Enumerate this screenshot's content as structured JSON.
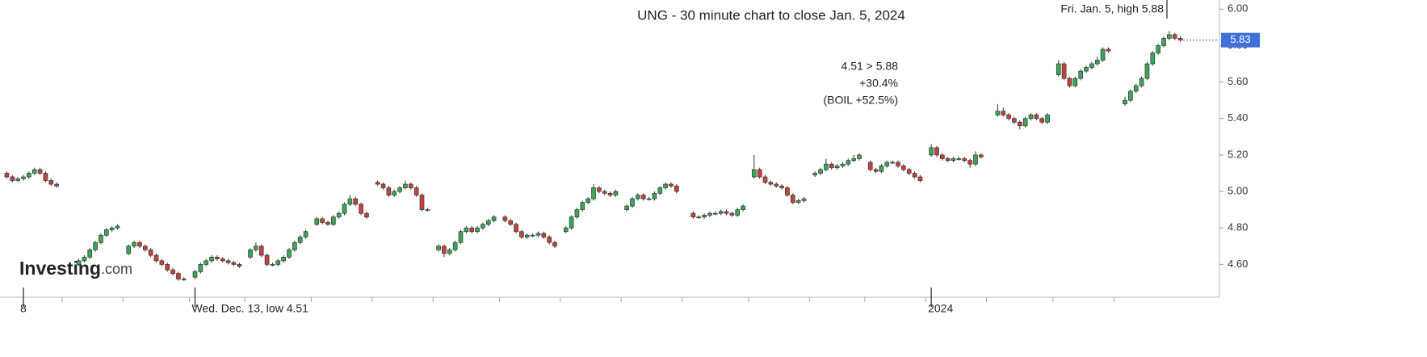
{
  "chart_data": {
    "type": "candlestick",
    "title": "UNG - 30 minute chart to close Jan. 5, 2024",
    "annotations": [
      "Fri. Jan. 5, high 5.88",
      "4.51 > 5.88",
      "+30.4%",
      "(BOIL +52.5%)"
    ],
    "watermark": [
      "Investing",
      ".com"
    ],
    "last_price": 5.83,
    "last_price_color": "#3f6fd8",
    "up_color": "#3aa757",
    "down_color": "#c9403a",
    "ylim": [
      4.42,
      6.05
    ],
    "yticks": [
      {
        "value": 4.6,
        "label": "4.60"
      },
      {
        "value": 4.8,
        "label": "4.80"
      },
      {
        "value": 5.0,
        "label": "5.00"
      },
      {
        "value": 5.2,
        "label": "5.20"
      },
      {
        "value": 5.4,
        "label": "5.40"
      },
      {
        "value": 5.6,
        "label": "5.60"
      },
      {
        "value": 5.8,
        "label": "5.80"
      },
      {
        "value": 6.0,
        "label": "6.00"
      }
    ],
    "categories": [
      null,
      null,
      null,
      "8",
      null,
      null,
      null,
      null,
      null,
      null,
      null,
      null,
      null,
      null,
      null,
      null,
      null,
      null,
      null,
      null,
      null,
      null,
      null,
      null,
      null,
      null,
      null,
      null,
      null,
      null,
      null,
      null,
      null,
      null,
      "Wed. Dec. 13, low 4.51",
      null,
      null,
      null,
      null,
      null,
      null,
      null,
      null,
      null,
      null,
      null,
      null,
      null,
      null,
      null,
      null,
      null,
      null,
      null,
      null,
      null,
      null,
      null,
      null,
      null,
      null,
      null,
      null,
      null,
      null,
      null,
      null,
      null,
      null,
      null,
      null,
      null,
      null,
      null,
      null,
      null,
      null,
      null,
      null,
      null,
      null,
      null,
      null,
      null,
      null,
      null,
      null,
      null,
      null,
      null,
      null,
      null,
      null,
      null,
      null,
      null,
      null,
      null,
      null,
      null,
      null,
      null,
      null,
      null,
      null,
      null,
      null,
      null,
      null,
      null,
      null,
      null,
      null,
      null,
      null,
      null,
      null,
      null,
      null,
      null,
      null,
      null,
      null,
      null,
      null,
      null,
      null,
      null,
      null,
      null,
      null,
      null,
      null,
      null,
      null,
      null,
      null,
      null,
      null,
      null,
      null,
      null,
      null,
      null,
      null,
      null,
      null,
      null,
      null,
      null,
      null,
      null,
      null,
      null,
      null,
      null,
      null,
      null,
      null,
      null,
      null,
      null,
      null,
      null,
      null,
      null,
      null,
      "2024",
      null,
      null,
      null,
      null,
      null,
      null,
      null,
      null,
      null,
      null,
      null,
      null,
      null,
      null,
      null,
      null,
      null,
      null,
      null,
      null,
      null,
      null,
      null,
      null,
      null,
      null,
      null,
      null,
      null,
      null,
      null,
      null,
      null,
      null,
      null,
      null,
      null,
      null,
      null,
      null,
      null,
      null,
      null,
      null,
      null
    ],
    "open": [
      5.1,
      5.08,
      5.06,
      5.07,
      5.08,
      5.1,
      5.12,
      5.1,
      5.06,
      5.04,
      null,
      null,
      null,
      4.6,
      4.62,
      4.64,
      4.68,
      4.72,
      4.76,
      4.79,
      4.8,
      null,
      4.66,
      4.7,
      4.72,
      4.7,
      4.68,
      4.65,
      4.62,
      4.6,
      4.57,
      4.55,
      4.52,
      null,
      4.53,
      4.56,
      4.6,
      4.62,
      4.64,
      4.63,
      4.62,
      4.61,
      4.6,
      null,
      4.64,
      4.68,
      4.7,
      4.65,
      4.6,
      4.6,
      4.62,
      4.64,
      4.68,
      4.72,
      4.75,
      null,
      4.82,
      4.85,
      4.83,
      4.82,
      4.86,
      4.88,
      4.93,
      4.96,
      4.93,
      4.88,
      null,
      5.05,
      5.04,
      5.02,
      4.98,
      5.0,
      5.02,
      5.04,
      5.02,
      4.98,
      4.9,
      null,
      4.68,
      4.7,
      4.66,
      4.68,
      4.72,
      4.78,
      4.8,
      4.78,
      4.8,
      4.82,
      4.84,
      null,
      4.86,
      4.84,
      4.82,
      4.78,
      4.75,
      4.76,
      4.76,
      4.77,
      4.75,
      4.72,
      null,
      4.78,
      4.8,
      4.86,
      4.9,
      4.94,
      4.96,
      5.02,
      5.0,
      4.99,
      4.98,
      null,
      4.9,
      4.92,
      4.96,
      4.98,
      4.96,
      4.96,
      4.99,
      5.02,
      5.04,
      5.03,
      null,
      null,
      4.88,
      4.86,
      4.86,
      4.87,
      4.88,
      4.88,
      4.89,
      4.88,
      4.87,
      4.9,
      null,
      5.08,
      5.12,
      5.08,
      5.05,
      5.04,
      5.03,
      5.02,
      4.98,
      4.94,
      4.95,
      null,
      5.09,
      5.1,
      5.12,
      5.15,
      5.13,
      5.14,
      5.15,
      5.17,
      5.18,
      null,
      5.16,
      5.12,
      5.11,
      5.14,
      5.16,
      5.16,
      5.14,
      5.12,
      5.1,
      5.08,
      null,
      5.2,
      5.24,
      5.2,
      5.18,
      5.17,
      5.18,
      5.18,
      5.17,
      5.15,
      5.2,
      null,
      null,
      5.42,
      5.44,
      5.42,
      5.4,
      5.38,
      5.36,
      5.4,
      5.42,
      5.4,
      5.38,
      null,
      5.64,
      5.7,
      5.62,
      5.58,
      5.62,
      5.66,
      5.68,
      5.7,
      5.72,
      5.78,
      null,
      null,
      5.48,
      5.5,
      5.55,
      5.58,
      5.62,
      5.7,
      5.76,
      5.8,
      5.84,
      5.86,
      5.84
    ],
    "high": [
      5.11,
      5.09,
      5.08,
      5.09,
      5.11,
      5.13,
      5.13,
      5.11,
      5.07,
      5.05,
      null,
      null,
      null,
      4.63,
      4.65,
      4.69,
      4.73,
      4.77,
      4.8,
      4.81,
      4.82,
      null,
      4.71,
      4.73,
      4.73,
      4.71,
      4.69,
      4.66,
      4.63,
      4.61,
      4.58,
      4.56,
      4.53,
      null,
      4.57,
      4.61,
      4.63,
      4.65,
      4.65,
      4.64,
      4.63,
      4.62,
      4.61,
      null,
      4.69,
      4.72,
      4.71,
      4.66,
      4.61,
      4.63,
      4.65,
      4.69,
      4.73,
      4.76,
      4.79,
      null,
      4.86,
      4.86,
      4.84,
      4.87,
      4.89,
      4.94,
      4.98,
      4.97,
      4.94,
      4.89,
      null,
      5.06,
      5.05,
      5.03,
      5.01,
      5.03,
      5.06,
      5.05,
      5.03,
      4.99,
      4.91,
      null,
      4.71,
      4.71,
      4.69,
      4.73,
      4.79,
      4.81,
      4.81,
      4.81,
      4.83,
      4.85,
      4.87,
      null,
      4.87,
      4.85,
      4.83,
      4.79,
      4.77,
      4.77,
      4.78,
      4.78,
      4.76,
      4.73,
      null,
      4.81,
      4.87,
      4.91,
      4.95,
      4.97,
      5.04,
      5.03,
      5.01,
      5.0,
      5.01,
      null,
      4.93,
      4.97,
      4.99,
      4.99,
      4.97,
      5.0,
      5.03,
      5.05,
      5.05,
      5.04,
      null,
      null,
      4.89,
      4.87,
      4.88,
      4.89,
      4.89,
      4.9,
      4.9,
      4.89,
      4.91,
      4.93,
      null,
      5.2,
      5.13,
      5.09,
      5.06,
      5.05,
      5.04,
      5.03,
      4.99,
      4.96,
      4.97,
      null,
      5.11,
      5.13,
      5.18,
      5.16,
      5.15,
      5.16,
      5.18,
      5.2,
      5.21,
      null,
      5.17,
      5.13,
      5.15,
      5.17,
      5.17,
      5.17,
      5.15,
      5.13,
      5.11,
      5.09,
      null,
      5.26,
      5.25,
      5.21,
      5.19,
      5.19,
      5.19,
      5.19,
      5.18,
      5.22,
      5.21,
      null,
      null,
      5.48,
      5.46,
      5.43,
      5.41,
      5.39,
      5.41,
      5.43,
      5.43,
      5.41,
      5.43,
      null,
      5.72,
      5.71,
      5.63,
      5.63,
      5.67,
      5.69,
      5.71,
      5.74,
      5.79,
      5.79,
      null,
      null,
      5.52,
      5.56,
      5.59,
      5.63,
      5.71,
      5.77,
      5.81,
      5.85,
      5.88,
      5.87,
      5.85
    ],
    "low": [
      5.07,
      5.05,
      5.05,
      5.06,
      5.07,
      5.09,
      5.09,
      5.05,
      5.03,
      5.02,
      null,
      null,
      null,
      4.59,
      4.61,
      4.63,
      4.67,
      4.71,
      4.75,
      4.78,
      4.79,
      null,
      4.65,
      4.69,
      4.69,
      4.67,
      4.64,
      4.61,
      4.59,
      4.56,
      4.54,
      4.51,
      4.51,
      null,
      4.52,
      4.55,
      4.59,
      4.61,
      4.62,
      4.61,
      4.6,
      4.59,
      4.58,
      null,
      4.63,
      4.67,
      4.64,
      4.59,
      4.59,
      4.59,
      4.61,
      4.63,
      4.67,
      4.71,
      4.74,
      null,
      4.81,
      4.82,
      4.81,
      4.81,
      4.85,
      4.87,
      4.92,
      4.92,
      4.87,
      4.85,
      null,
      5.03,
      5.01,
      4.97,
      4.97,
      4.99,
      5.01,
      5.01,
      4.97,
      4.89,
      4.89,
      null,
      4.67,
      4.64,
      4.65,
      4.67,
      4.71,
      4.77,
      4.77,
      4.77,
      4.79,
      4.81,
      4.83,
      null,
      4.83,
      4.81,
      4.77,
      4.74,
      4.74,
      4.75,
      4.75,
      4.74,
      4.71,
      4.69,
      null,
      4.77,
      4.79,
      4.85,
      4.89,
      4.93,
      4.95,
      4.99,
      4.98,
      4.97,
      4.97,
      null,
      4.89,
      4.91,
      4.95,
      4.95,
      4.95,
      4.95,
      4.98,
      5.01,
      5.02,
      4.99,
      null,
      null,
      4.85,
      4.85,
      4.85,
      4.86,
      4.87,
      4.87,
      4.87,
      4.86,
      4.86,
      4.89,
      null,
      5.07,
      5.07,
      5.04,
      5.03,
      5.02,
      5.01,
      4.97,
      4.93,
      4.93,
      4.94,
      null,
      5.08,
      5.09,
      5.11,
      5.12,
      5.12,
      5.13,
      5.14,
      5.16,
      5.17,
      null,
      5.11,
      5.1,
      5.1,
      5.13,
      5.15,
      5.13,
      5.11,
      5.09,
      5.07,
      5.05,
      null,
      5.19,
      5.19,
      5.17,
      5.16,
      5.16,
      5.17,
      5.16,
      5.13,
      5.14,
      5.18,
      null,
      null,
      5.41,
      5.41,
      5.39,
      5.37,
      5.34,
      5.35,
      5.39,
      5.39,
      5.37,
      5.37,
      null,
      5.63,
      5.61,
      5.57,
      5.57,
      5.61,
      5.65,
      5.67,
      5.69,
      5.71,
      5.76,
      null,
      null,
      5.47,
      5.49,
      5.54,
      5.57,
      5.61,
      5.69,
      5.75,
      5.79,
      5.83,
      5.83,
      5.82
    ],
    "close": [
      5.08,
      5.06,
      5.07,
      5.08,
      5.1,
      5.12,
      5.1,
      5.06,
      5.04,
      5.03,
      null,
      null,
      null,
      4.62,
      4.64,
      4.68,
      4.72,
      4.76,
      4.79,
      4.8,
      4.81,
      null,
      4.7,
      4.72,
      4.7,
      4.68,
      4.65,
      4.62,
      4.6,
      4.57,
      4.55,
      4.52,
      4.52,
      null,
      4.56,
      4.6,
      4.62,
      4.64,
      4.63,
      4.62,
      4.61,
      4.6,
      4.59,
      null,
      4.68,
      4.7,
      4.65,
      4.6,
      4.6,
      4.62,
      4.64,
      4.68,
      4.72,
      4.75,
      4.78,
      null,
      4.85,
      4.83,
      4.82,
      4.86,
      4.88,
      4.93,
      4.96,
      4.93,
      4.88,
      4.86,
      null,
      5.04,
      5.02,
      4.98,
      5.0,
      5.02,
      5.04,
      5.02,
      4.98,
      4.9,
      4.9,
      null,
      4.7,
      4.66,
      4.68,
      4.72,
      4.78,
      4.8,
      4.78,
      4.8,
      4.82,
      4.84,
      4.86,
      null,
      4.84,
      4.82,
      4.78,
      4.75,
      4.76,
      4.76,
      4.77,
      4.75,
      4.72,
      4.7,
      null,
      4.8,
      4.86,
      4.9,
      4.94,
      4.96,
      5.02,
      5.0,
      4.99,
      4.98,
      5.0,
      null,
      4.92,
      4.96,
      4.98,
      4.96,
      4.96,
      4.99,
      5.02,
      5.04,
      5.03,
      5.0,
      null,
      null,
      4.86,
      4.86,
      4.87,
      4.88,
      4.88,
      4.89,
      4.88,
      4.87,
      4.9,
      4.92,
      null,
      5.12,
      5.08,
      5.05,
      5.04,
      5.03,
      5.02,
      4.98,
      4.94,
      4.95,
      4.96,
      null,
      5.1,
      5.12,
      5.15,
      5.13,
      5.14,
      5.15,
      5.17,
      5.18,
      5.2,
      null,
      5.12,
      5.11,
      5.14,
      5.16,
      5.16,
      5.14,
      5.12,
      5.1,
      5.08,
      5.06,
      null,
      5.24,
      5.2,
      5.18,
      5.17,
      5.18,
      5.18,
      5.17,
      5.15,
      5.2,
      5.19,
      null,
      null,
      5.44,
      5.42,
      5.4,
      5.38,
      5.36,
      5.4,
      5.42,
      5.4,
      5.38,
      5.42,
      null,
      5.7,
      5.62,
      5.58,
      5.62,
      5.66,
      5.68,
      5.7,
      5.72,
      5.78,
      5.77,
      null,
      null,
      5.5,
      5.55,
      5.58,
      5.62,
      5.7,
      5.76,
      5.8,
      5.84,
      5.86,
      5.84,
      5.83
    ]
  }
}
